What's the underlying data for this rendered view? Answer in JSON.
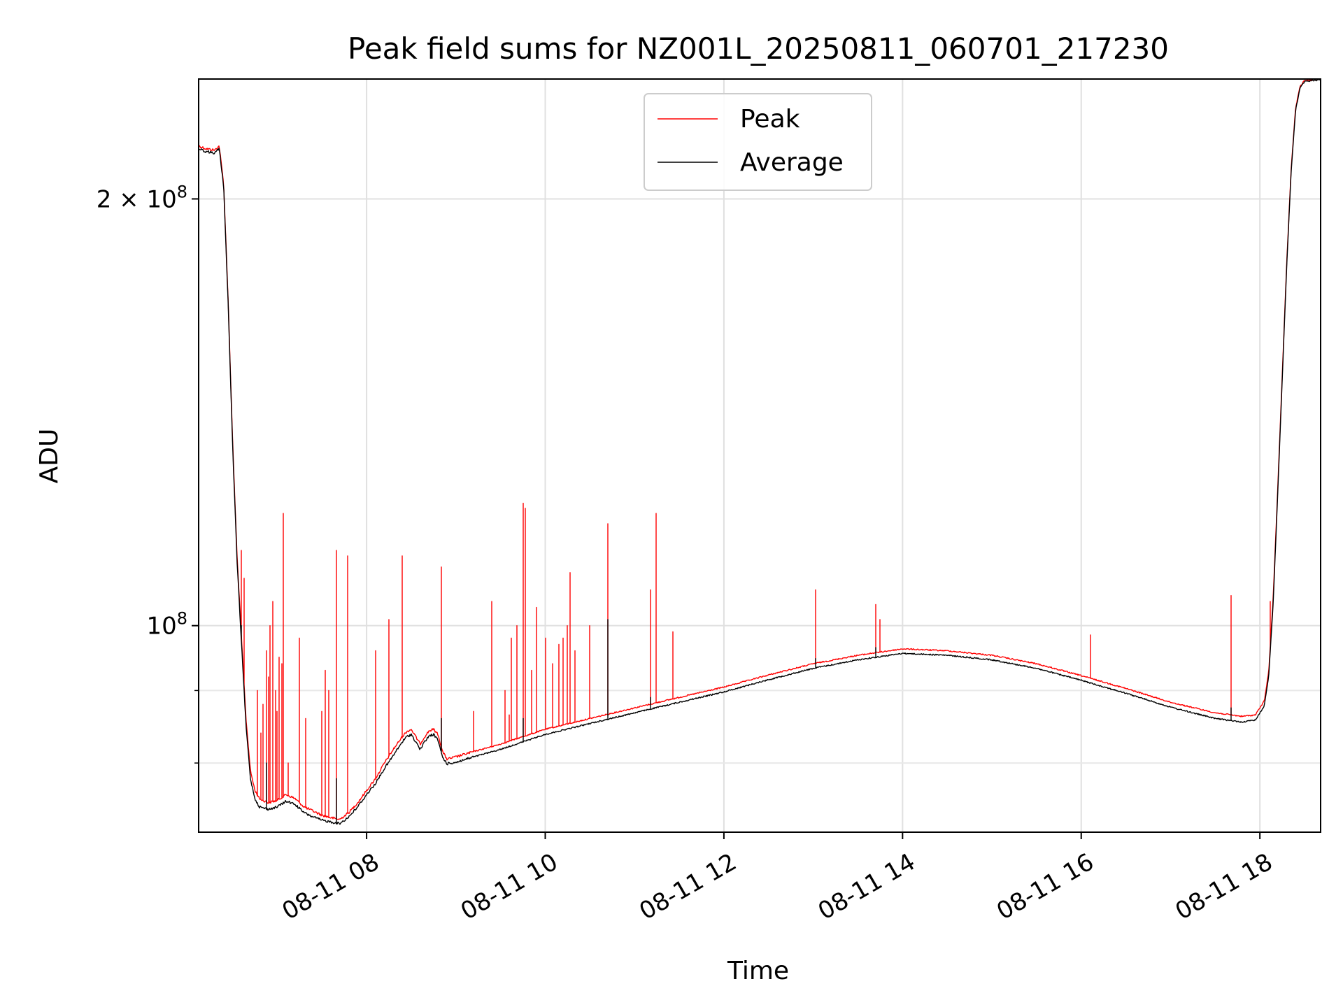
{
  "chart_data": {
    "type": "line",
    "title": "Peak field sums for NZ001L_20250811_060701_217230",
    "xlabel": "Time",
    "ylabel": "ADU",
    "x_unit": "hours of day (2025-08-11)",
    "xlim": [
      6.12,
      18.68
    ],
    "ylim": [
      71500000,
      243000000
    ],
    "yscale": "log",
    "grid": true,
    "legend_position": "top-center",
    "x_ticks": [
      {
        "x": 8,
        "label": "08-11 08"
      },
      {
        "x": 10,
        "label": "08-11 10"
      },
      {
        "x": 12,
        "label": "08-11 12"
      },
      {
        "x": 14,
        "label": "08-11 14"
      },
      {
        "x": 16,
        "label": "08-11 16"
      },
      {
        "x": 18,
        "label": "08-11 18"
      }
    ],
    "y_ticks": [
      {
        "y": 200000000,
        "base": "2 × 10",
        "exp": "8"
      },
      {
        "y": 100000000,
        "base": "10",
        "exp": "8"
      }
    ],
    "y_minor_ticks": [
      80000000,
      90000000
    ],
    "series": [
      {
        "name": "Peak",
        "color": "#ff0000",
        "baseline": [
          [
            6.12,
            218000000
          ],
          [
            6.2,
            217000000
          ],
          [
            6.3,
            216500000
          ],
          [
            6.35,
            218000000
          ],
          [
            6.4,
            205000000
          ],
          [
            6.45,
            170000000
          ],
          [
            6.5,
            135000000
          ],
          [
            6.55,
            112000000
          ],
          [
            6.6,
            98000000
          ],
          [
            6.65,
            86000000
          ],
          [
            6.7,
            79000000
          ],
          [
            6.75,
            76500000
          ],
          [
            6.8,
            75500000
          ],
          [
            6.9,
            75000000
          ],
          [
            7.0,
            75300000
          ],
          [
            7.1,
            76000000
          ],
          [
            7.2,
            75500000
          ],
          [
            7.3,
            74500000
          ],
          [
            7.4,
            74000000
          ],
          [
            7.5,
            73500000
          ],
          [
            7.6,
            73200000
          ],
          [
            7.7,
            73000000
          ],
          [
            7.8,
            73800000
          ],
          [
            7.9,
            75000000
          ],
          [
            8.0,
            76500000
          ],
          [
            8.1,
            78000000
          ],
          [
            8.2,
            80000000
          ],
          [
            8.3,
            81800000
          ],
          [
            8.4,
            83500000
          ],
          [
            8.45,
            84200000
          ],
          [
            8.5,
            84500000
          ],
          [
            8.55,
            83500000
          ],
          [
            8.6,
            82500000
          ],
          [
            8.65,
            83500000
          ],
          [
            8.7,
            84300000
          ],
          [
            8.75,
            84500000
          ],
          [
            8.8,
            83800000
          ],
          [
            8.85,
            81500000
          ],
          [
            8.9,
            80500000
          ],
          [
            9.0,
            80800000
          ],
          [
            9.2,
            81500000
          ],
          [
            9.5,
            82500000
          ],
          [
            9.8,
            83700000
          ],
          [
            10.0,
            84500000
          ],
          [
            10.5,
            86000000
          ],
          [
            11.0,
            87500000
          ],
          [
            11.5,
            89000000
          ],
          [
            12.0,
            90500000
          ],
          [
            12.5,
            92300000
          ],
          [
            13.0,
            94000000
          ],
          [
            13.5,
            95300000
          ],
          [
            14.0,
            96300000
          ],
          [
            14.5,
            96000000
          ],
          [
            15.0,
            95300000
          ],
          [
            15.5,
            94000000
          ],
          [
            16.0,
            92200000
          ],
          [
            16.5,
            90300000
          ],
          [
            17.0,
            88300000
          ],
          [
            17.5,
            86800000
          ],
          [
            17.8,
            86300000
          ],
          [
            17.95,
            86500000
          ],
          [
            18.05,
            88500000
          ],
          [
            18.1,
            93000000
          ],
          [
            18.15,
            105000000
          ],
          [
            18.2,
            125000000
          ],
          [
            18.25,
            150000000
          ],
          [
            18.3,
            180000000
          ],
          [
            18.35,
            210000000
          ],
          [
            18.4,
            232000000
          ],
          [
            18.45,
            240000000
          ],
          [
            18.5,
            242500000
          ],
          [
            18.68,
            243000000
          ]
        ],
        "spikes": [
          [
            6.6,
            113000000
          ],
          [
            6.63,
            108000000
          ],
          [
            6.78,
            90000000
          ],
          [
            6.82,
            84000000
          ],
          [
            6.84,
            88000000
          ],
          [
            6.88,
            96000000
          ],
          [
            6.9,
            92000000
          ],
          [
            6.92,
            100000000
          ],
          [
            6.95,
            104000000
          ],
          [
            6.98,
            90000000
          ],
          [
            7.0,
            87000000
          ],
          [
            7.02,
            95000000
          ],
          [
            7.05,
            94000000
          ],
          [
            7.07,
            120000000
          ],
          [
            7.12,
            80000000
          ],
          [
            7.25,
            98000000
          ],
          [
            7.32,
            86000000
          ],
          [
            7.5,
            87000000
          ],
          [
            7.54,
            93000000
          ],
          [
            7.58,
            90000000
          ],
          [
            7.66,
            113000000
          ],
          [
            7.79,
            112000000
          ],
          [
            8.1,
            96000000
          ],
          [
            8.25,
            101000000
          ],
          [
            8.4,
            112000000
          ],
          [
            8.84,
            110000000
          ],
          [
            9.2,
            87000000
          ],
          [
            9.4,
            104000000
          ],
          [
            9.55,
            90000000
          ],
          [
            9.6,
            86500000
          ],
          [
            9.62,
            98000000
          ],
          [
            9.68,
            100000000
          ],
          [
            9.75,
            122000000
          ],
          [
            9.78,
            121000000
          ],
          [
            9.85,
            93000000
          ],
          [
            9.9,
            103000000
          ],
          [
            10.0,
            98000000
          ],
          [
            10.08,
            94000000
          ],
          [
            10.15,
            97000000
          ],
          [
            10.2,
            98000000
          ],
          [
            10.25,
            100000000
          ],
          [
            10.28,
            109000000
          ],
          [
            10.33,
            96000000
          ],
          [
            10.5,
            100000000
          ],
          [
            10.7,
            118000000
          ],
          [
            11.18,
            106000000
          ],
          [
            11.24,
            120000000
          ],
          [
            11.43,
            99000000
          ],
          [
            13.03,
            106000000
          ],
          [
            13.7,
            103500000
          ],
          [
            13.75,
            101000000
          ],
          [
            16.1,
            98500000
          ],
          [
            17.68,
            105000000
          ],
          [
            18.12,
            104000000
          ]
        ]
      },
      {
        "name": "Average",
        "color": "#000000",
        "baseline": [
          [
            6.12,
            217000000
          ],
          [
            6.2,
            216000000
          ],
          [
            6.3,
            215500000
          ],
          [
            6.35,
            217000000
          ],
          [
            6.4,
            204000000
          ],
          [
            6.45,
            169000000
          ],
          [
            6.5,
            134000000
          ],
          [
            6.55,
            111000000
          ],
          [
            6.6,
            97000000
          ],
          [
            6.65,
            85000000
          ],
          [
            6.7,
            78000000
          ],
          [
            6.75,
            75500000
          ],
          [
            6.8,
            74500000
          ],
          [
            6.9,
            74200000
          ],
          [
            7.0,
            74500000
          ],
          [
            7.1,
            75200000
          ],
          [
            7.2,
            74800000
          ],
          [
            7.3,
            73800000
          ],
          [
            7.4,
            73300000
          ],
          [
            7.5,
            72900000
          ],
          [
            7.6,
            72700000
          ],
          [
            7.7,
            72500000
          ],
          [
            7.8,
            73300000
          ],
          [
            7.9,
            74500000
          ],
          [
            8.0,
            76000000
          ],
          [
            8.1,
            77400000
          ],
          [
            8.2,
            79300000
          ],
          [
            8.3,
            81000000
          ],
          [
            8.4,
            82800000
          ],
          [
            8.45,
            83500000
          ],
          [
            8.5,
            83800000
          ],
          [
            8.55,
            82800000
          ],
          [
            8.6,
            81800000
          ],
          [
            8.65,
            82800000
          ],
          [
            8.7,
            83600000
          ],
          [
            8.75,
            83800000
          ],
          [
            8.8,
            83000000
          ],
          [
            8.85,
            80800000
          ],
          [
            8.9,
            79900000
          ],
          [
            9.0,
            80100000
          ],
          [
            9.2,
            80800000
          ],
          [
            9.5,
            81800000
          ],
          [
            9.8,
            83000000
          ],
          [
            10.0,
            83800000
          ],
          [
            10.5,
            85300000
          ],
          [
            11.0,
            86800000
          ],
          [
            11.5,
            88300000
          ],
          [
            12.0,
            89800000
          ],
          [
            12.5,
            91600000
          ],
          [
            13.0,
            93300000
          ],
          [
            13.5,
            94600000
          ],
          [
            14.0,
            95600000
          ],
          [
            14.5,
            95300000
          ],
          [
            15.0,
            94600000
          ],
          [
            15.5,
            93300000
          ],
          [
            16.0,
            91500000
          ],
          [
            16.5,
            89600000
          ],
          [
            17.0,
            87600000
          ],
          [
            17.5,
            86000000
          ],
          [
            17.8,
            85500000
          ],
          [
            17.95,
            85800000
          ],
          [
            18.05,
            87800000
          ],
          [
            18.1,
            92300000
          ],
          [
            18.15,
            104000000
          ],
          [
            18.2,
            124000000
          ],
          [
            18.25,
            149000000
          ],
          [
            18.3,
            179000000
          ],
          [
            18.35,
            209000000
          ],
          [
            18.4,
            231000000
          ],
          [
            18.45,
            239500000
          ],
          [
            18.5,
            242000000
          ],
          [
            18.68,
            242700000
          ]
        ],
        "spikes": [
          [
            6.6,
            100000000
          ],
          [
            6.88,
            80000000
          ],
          [
            7.66,
            78000000
          ],
          [
            8.84,
            86000000
          ],
          [
            9.75,
            86000000
          ],
          [
            10.7,
            101000000
          ],
          [
            11.18,
            89000000
          ],
          [
            13.03,
            94800000
          ],
          [
            13.7,
            96500000
          ],
          [
            17.68,
            87500000
          ]
        ]
      }
    ]
  }
}
